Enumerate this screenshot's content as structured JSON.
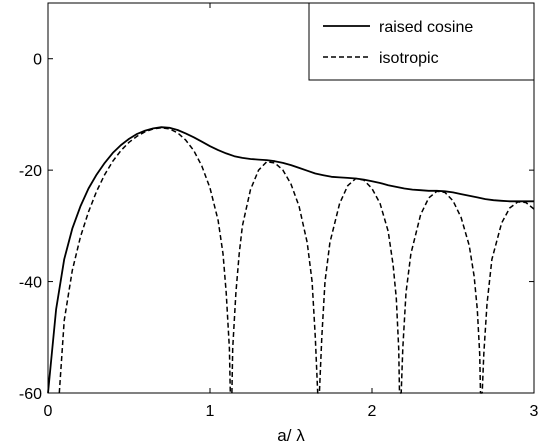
{
  "chart_data": {
    "type": "line",
    "title": "",
    "xlabel": "a/ λ",
    "ylabel": "",
    "xlim": [
      0,
      3
    ],
    "ylim": [
      -60,
      10
    ],
    "xticks": [
      0,
      1,
      2,
      3
    ],
    "yticks": [
      0,
      -20,
      -40,
      -60
    ],
    "grid": false,
    "legend_position": "top-right",
    "series": [
      {
        "name": "raised cosine",
        "line_style": "solid",
        "color": "#000000",
        "points": [
          [
            0.0,
            -60
          ],
          [
            0.05,
            -45
          ],
          [
            0.1,
            -36
          ],
          [
            0.15,
            -30.5
          ],
          [
            0.2,
            -26.5
          ],
          [
            0.25,
            -23.3
          ],
          [
            0.3,
            -20.8
          ],
          [
            0.35,
            -18.7
          ],
          [
            0.4,
            -16.9
          ],
          [
            0.45,
            -15.5
          ],
          [
            0.5,
            -14.4
          ],
          [
            0.55,
            -13.5
          ],
          [
            0.6,
            -12.9
          ],
          [
            0.65,
            -12.5
          ],
          [
            0.7,
            -12.3
          ],
          [
            0.75,
            -12.4
          ],
          [
            0.8,
            -12.8
          ],
          [
            0.85,
            -13.4
          ],
          [
            0.9,
            -14.1
          ],
          [
            0.95,
            -14.9
          ],
          [
            1.0,
            -15.7
          ],
          [
            1.05,
            -16.4
          ],
          [
            1.1,
            -17.0
          ],
          [
            1.15,
            -17.5
          ],
          [
            1.2,
            -17.8
          ],
          [
            1.25,
            -18.0
          ],
          [
            1.3,
            -18.1
          ],
          [
            1.35,
            -18.2
          ],
          [
            1.4,
            -18.4
          ],
          [
            1.45,
            -18.7
          ],
          [
            1.5,
            -19.1
          ],
          [
            1.55,
            -19.6
          ],
          [
            1.6,
            -20.1
          ],
          [
            1.65,
            -20.6
          ],
          [
            1.7,
            -20.9
          ],
          [
            1.75,
            -21.2
          ],
          [
            1.8,
            -21.3
          ],
          [
            1.85,
            -21.4
          ],
          [
            1.9,
            -21.5
          ],
          [
            1.95,
            -21.7
          ],
          [
            2.0,
            -22.0
          ],
          [
            2.05,
            -22.3
          ],
          [
            2.1,
            -22.7
          ],
          [
            2.15,
            -23.0
          ],
          [
            2.2,
            -23.3
          ],
          [
            2.25,
            -23.5
          ],
          [
            2.3,
            -23.6
          ],
          [
            2.35,
            -23.7
          ],
          [
            2.4,
            -23.7
          ],
          [
            2.45,
            -23.8
          ],
          [
            2.5,
            -24.0
          ],
          [
            2.55,
            -24.3
          ],
          [
            2.6,
            -24.6
          ],
          [
            2.65,
            -24.9
          ],
          [
            2.7,
            -25.2
          ],
          [
            2.75,
            -25.4
          ],
          [
            2.8,
            -25.5
          ],
          [
            2.85,
            -25.6
          ],
          [
            2.9,
            -25.6
          ],
          [
            2.95,
            -25.6
          ],
          [
            3.0,
            -25.6
          ]
        ]
      },
      {
        "name": "isotropic",
        "line_style": "dashed",
        "color": "#000000",
        "points": [
          [
            0.07,
            -60
          ],
          [
            0.1,
            -47
          ],
          [
            0.15,
            -38
          ],
          [
            0.2,
            -32
          ],
          [
            0.25,
            -27.5
          ],
          [
            0.3,
            -23.8
          ],
          [
            0.35,
            -20.8
          ],
          [
            0.4,
            -18.4
          ],
          [
            0.45,
            -16.5
          ],
          [
            0.5,
            -15.0
          ],
          [
            0.55,
            -13.9
          ],
          [
            0.6,
            -13.1
          ],
          [
            0.65,
            -12.6
          ],
          [
            0.7,
            -12.4
          ],
          [
            0.75,
            -12.6
          ],
          [
            0.8,
            -13.3
          ],
          [
            0.85,
            -14.6
          ],
          [
            0.9,
            -16.5
          ],
          [
            0.95,
            -19.3
          ],
          [
            1.0,
            -23.2
          ],
          [
            1.05,
            -29.0
          ],
          [
            1.08,
            -35.0
          ],
          [
            1.1,
            -42.0
          ],
          [
            1.12,
            -52.0
          ],
          [
            1.125,
            -60
          ],
          [
            1.135,
            -60
          ],
          [
            1.14,
            -52.0
          ],
          [
            1.16,
            -42.0
          ],
          [
            1.18,
            -35.0
          ],
          [
            1.2,
            -30.0
          ],
          [
            1.25,
            -23.5
          ],
          [
            1.3,
            -20.0
          ],
          [
            1.35,
            -18.5
          ],
          [
            1.4,
            -18.7
          ],
          [
            1.45,
            -20.0
          ],
          [
            1.5,
            -22.5
          ],
          [
            1.55,
            -26.5
          ],
          [
            1.6,
            -33.0
          ],
          [
            1.63,
            -40.0
          ],
          [
            1.65,
            -50.0
          ],
          [
            1.665,
            -60
          ],
          [
            1.675,
            -60
          ],
          [
            1.69,
            -50.0
          ],
          [
            1.71,
            -40.0
          ],
          [
            1.74,
            -33.0
          ],
          [
            1.8,
            -26.0
          ],
          [
            1.85,
            -22.8
          ],
          [
            1.9,
            -21.5
          ],
          [
            1.95,
            -21.8
          ],
          [
            2.0,
            -23.3
          ],
          [
            2.05,
            -26.0
          ],
          [
            2.1,
            -31.0
          ],
          [
            2.13,
            -37.0
          ],
          [
            2.15,
            -43.0
          ],
          [
            2.165,
            -52.0
          ],
          [
            2.17,
            -60
          ],
          [
            2.18,
            -60
          ],
          [
            2.19,
            -52.0
          ],
          [
            2.21,
            -42.0
          ],
          [
            2.24,
            -35.0
          ],
          [
            2.3,
            -28.0
          ],
          [
            2.35,
            -25.0
          ],
          [
            2.4,
            -23.8
          ],
          [
            2.45,
            -24.0
          ],
          [
            2.5,
            -25.5
          ],
          [
            2.55,
            -28.5
          ],
          [
            2.6,
            -33.5
          ],
          [
            2.63,
            -39.0
          ],
          [
            2.65,
            -45.0
          ],
          [
            2.665,
            -53.0
          ],
          [
            2.67,
            -60
          ],
          [
            2.68,
            -60
          ],
          [
            2.69,
            -53.0
          ],
          [
            2.71,
            -44.0
          ],
          [
            2.74,
            -36.0
          ],
          [
            2.8,
            -29.5
          ],
          [
            2.85,
            -26.8
          ],
          [
            2.9,
            -25.7
          ],
          [
            2.95,
            -25.8
          ],
          [
            3.0,
            -27.0
          ]
        ]
      }
    ]
  }
}
